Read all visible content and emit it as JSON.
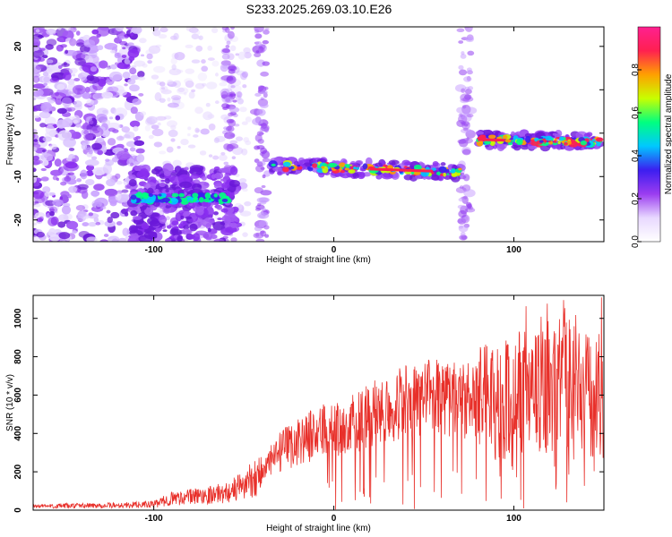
{
  "title": "S233.2025.269.03.10.E26",
  "colors": {
    "snr_line": "#e8302a",
    "frame": "#000000"
  },
  "colorbar": {
    "label": "Normalized spectral amplitude",
    "ticks": [
      "0.0",
      "0.2",
      "0.4",
      "0.6",
      "0.8"
    ],
    "stops": [
      "#ffffff",
      "#e8d8ff",
      "#9b3cf0",
      "#3c1ef0",
      "#00c8ff",
      "#00ff80",
      "#c8ff00",
      "#ffa000",
      "#ff2050",
      "#ff2090"
    ],
    "range": [
      0,
      1
    ]
  },
  "chart_data": [
    {
      "type": "heatmap",
      "xlabel": "Height of straight line (km)",
      "ylabel": "Frequency (Hz)",
      "x_ticks": [
        "-100",
        "0",
        "100"
      ],
      "y_ticks": [
        "20",
        "10",
        "0",
        "-10",
        "-20"
      ],
      "xlim": [
        -167,
        150
      ],
      "ylim": [
        -25,
        24.5
      ],
      "ridges": [
        {
          "x": [
            -112,
            -58
          ],
          "y": [
            -15,
            -15
          ]
        },
        {
          "x": [
            -35,
            72
          ],
          "y": [
            -7.5,
            -9
          ]
        },
        {
          "x": [
            80,
            148
          ],
          "y": [
            -1.5,
            -2
          ]
        }
      ]
    },
    {
      "type": "line",
      "xlabel": "Height of straight line (km)",
      "ylabel": "SNR (10 * v/v)",
      "x_ticks": [
        "-100",
        "0",
        "100"
      ],
      "y_ticks": [
        "0",
        "200",
        "400",
        "600",
        "800",
        "1000"
      ],
      "xlim": [
        -167,
        150
      ],
      "ylim": [
        0,
        1120
      ],
      "series": [
        {
          "x": [
            -167,
            -120,
            -100,
            -90,
            -80,
            -60,
            -50,
            -40,
            -30,
            -20,
            -10,
            0,
            10,
            20,
            30,
            40,
            50,
            60,
            70,
            80,
            90,
            100,
            110,
            120,
            130,
            140,
            150
          ],
          "y": [
            20,
            25,
            30,
            60,
            70,
            90,
            130,
            200,
            300,
            360,
            400,
            420,
            450,
            490,
            540,
            560,
            580,
            590,
            580,
            560,
            580,
            600,
            620,
            640,
            700,
            600,
            600
          ]
        }
      ]
    }
  ]
}
